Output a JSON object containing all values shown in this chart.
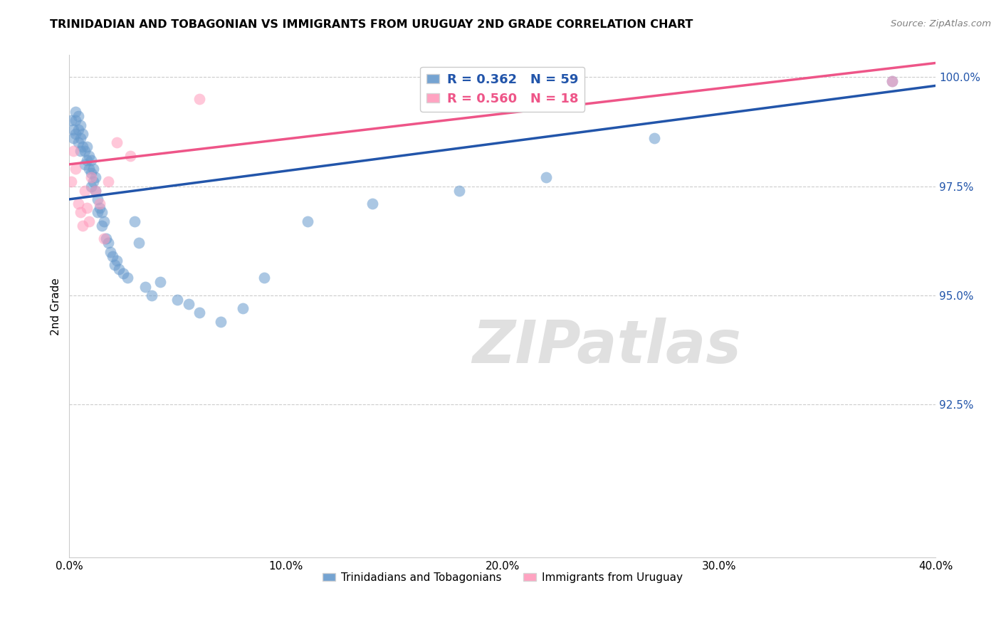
{
  "title": "TRINIDADIAN AND TOBAGONIAN VS IMMIGRANTS FROM URUGUAY 2ND GRADE CORRELATION CHART",
  "source": "Source: ZipAtlas.com",
  "ylabel": "2nd Grade",
  "xlim": [
    0.0,
    0.4
  ],
  "ylim": [
    0.89,
    1.005
  ],
  "ytick_values": [
    0.925,
    0.95,
    0.975,
    1.0
  ],
  "blue_R": 0.362,
  "blue_N": 59,
  "pink_R": 0.56,
  "pink_N": 18,
  "blue_color": "#6699CC",
  "pink_color": "#FF99BB",
  "blue_line_color": "#2255AA",
  "pink_line_color": "#EE5588",
  "legend_label_blue": "Trinidadians and Tobagonians",
  "legend_label_pink": "Immigrants from Uruguay",
  "blue_slope": 0.065,
  "blue_intercept": 0.972,
  "pink_slope": 0.058,
  "pink_intercept": 0.98,
  "grid_color": "#CCCCCC",
  "title_fontsize": 11.5,
  "tick_fontsize": 11,
  "legend_fontsize": 13,
  "blue_x": [
    0.001,
    0.002,
    0.002,
    0.003,
    0.003,
    0.003,
    0.004,
    0.004,
    0.004,
    0.005,
    0.005,
    0.005,
    0.006,
    0.006,
    0.007,
    0.007,
    0.008,
    0.008,
    0.009,
    0.009,
    0.01,
    0.01,
    0.01,
    0.011,
    0.011,
    0.012,
    0.012,
    0.013,
    0.013,
    0.014,
    0.015,
    0.015,
    0.016,
    0.017,
    0.018,
    0.019,
    0.02,
    0.021,
    0.022,
    0.023,
    0.025,
    0.027,
    0.03,
    0.032,
    0.035,
    0.038,
    0.042,
    0.05,
    0.055,
    0.06,
    0.07,
    0.08,
    0.09,
    0.11,
    0.14,
    0.18,
    0.22,
    0.27,
    0.38
  ],
  "blue_y": [
    0.99,
    0.988,
    0.986,
    0.992,
    0.99,
    0.987,
    0.991,
    0.988,
    0.985,
    0.989,
    0.986,
    0.983,
    0.987,
    0.984,
    0.983,
    0.98,
    0.984,
    0.981,
    0.982,
    0.979,
    0.981,
    0.978,
    0.975,
    0.979,
    0.976,
    0.977,
    0.974,
    0.972,
    0.969,
    0.97,
    0.969,
    0.966,
    0.967,
    0.963,
    0.962,
    0.96,
    0.959,
    0.957,
    0.958,
    0.956,
    0.955,
    0.954,
    0.967,
    0.962,
    0.952,
    0.95,
    0.953,
    0.949,
    0.948,
    0.946,
    0.944,
    0.947,
    0.954,
    0.967,
    0.971,
    0.974,
    0.977,
    0.986,
    0.999
  ],
  "pink_x": [
    0.001,
    0.002,
    0.003,
    0.004,
    0.005,
    0.006,
    0.007,
    0.008,
    0.009,
    0.01,
    0.012,
    0.014,
    0.016,
    0.018,
    0.022,
    0.028,
    0.06,
    0.38
  ],
  "pink_y": [
    0.976,
    0.983,
    0.979,
    0.971,
    0.969,
    0.966,
    0.974,
    0.97,
    0.967,
    0.977,
    0.974,
    0.971,
    0.963,
    0.976,
    0.985,
    0.982,
    0.995,
    0.999
  ]
}
